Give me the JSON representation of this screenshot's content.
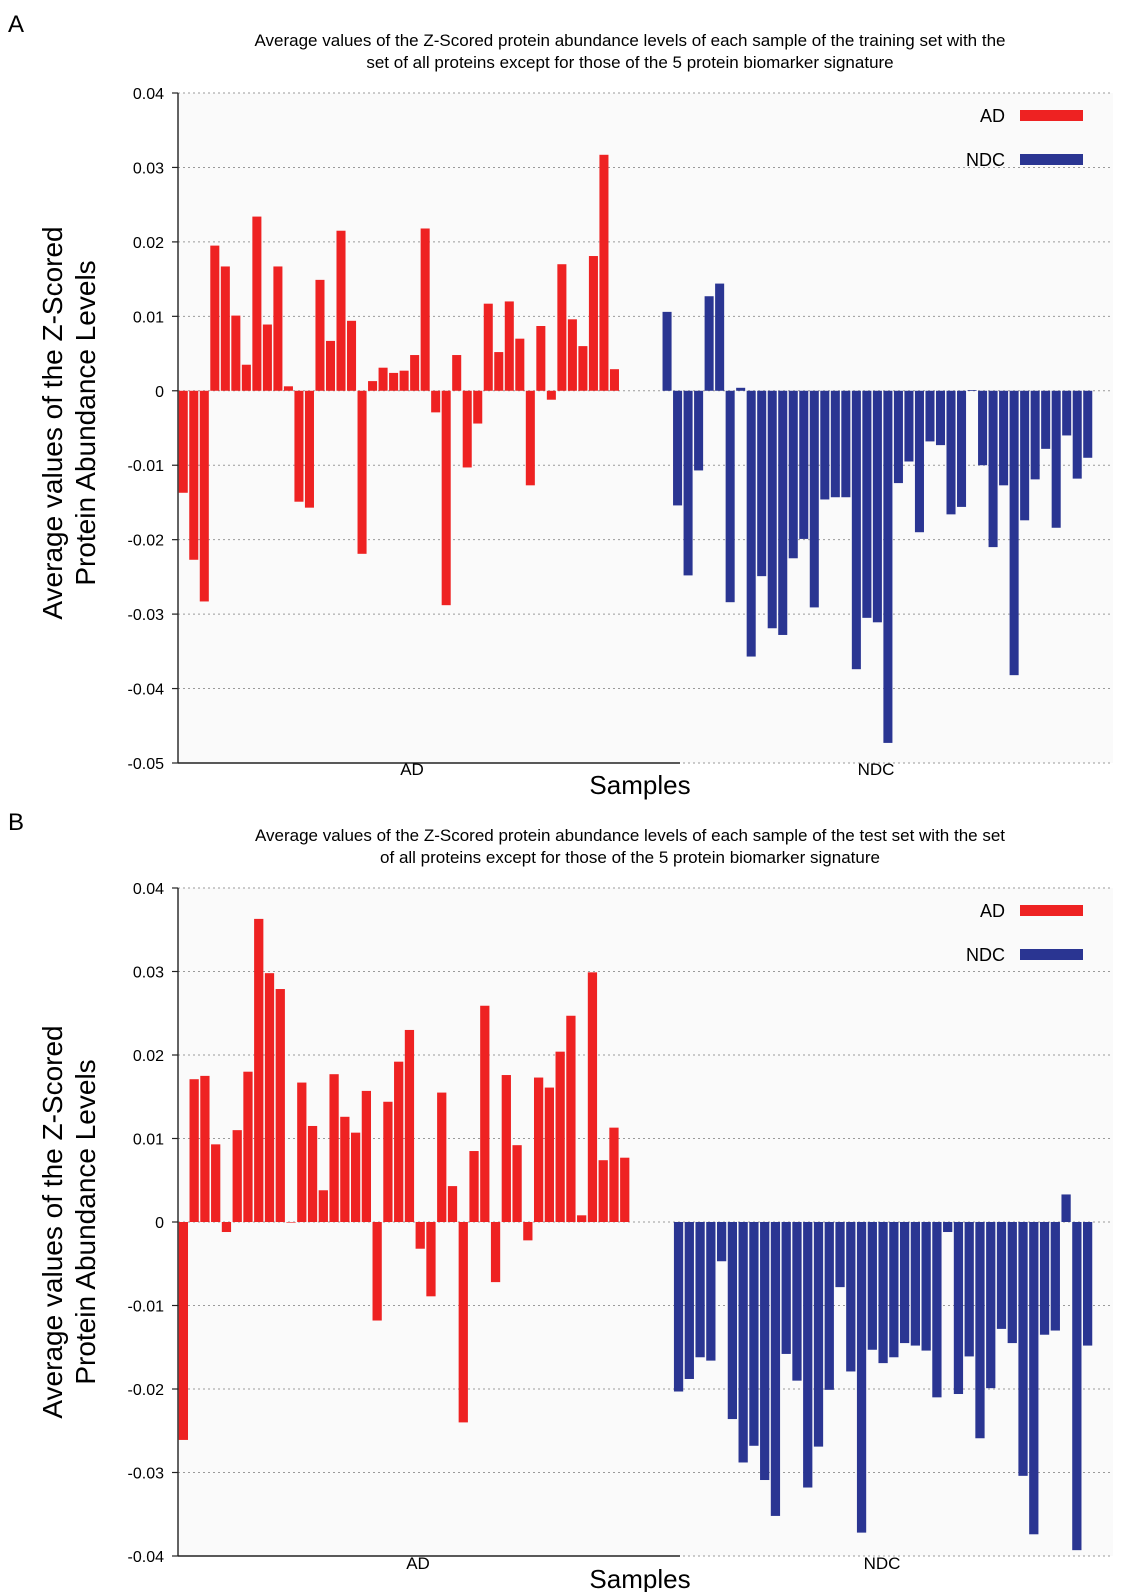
{
  "chart_data": [
    {
      "type": "bar",
      "panel": "A",
      "title_lines": [
        "Average values of the Z-Scored protein abundance levels of each sample of the training set with the",
        "set of all proteins except for those of the 5 protein biomarker signature"
      ],
      "xlabel": "Samples",
      "ylabel_lines": [
        "Average values of the Z-Scored",
        "Protein Abundance Levels"
      ],
      "ylim": [
        -0.05,
        0.04
      ],
      "yticks": [
        0.04,
        0.03,
        0.02,
        0.01,
        0,
        -0.01,
        -0.02,
        -0.03,
        -0.04,
        -0.05
      ],
      "ytick_labels": [
        "0.04",
        "0.03",
        "0.02",
        "0.01",
        "0",
        "-0.01",
        "-0.02",
        "-0.03",
        "-0.04",
        "-0.05"
      ],
      "grid": true,
      "legend": "top-right",
      "series": [
        {
          "name": "AD",
          "color": "#ee2222",
          "values": [
            -0.0137,
            -0.0227,
            -0.0283,
            0.0195,
            0.0167,
            0.0101,
            0.0035,
            0.0234,
            0.0089,
            0.0167,
            0.0006,
            -0.0149,
            -0.0157,
            0.0149,
            0.0067,
            0.0215,
            0.0094,
            -0.0219,
            0.0013,
            0.0031,
            0.0024,
            0.0027,
            0.0048,
            0.0218,
            -0.0029,
            -0.0288,
            0.0048,
            -0.0103,
            -0.0044,
            0.0117,
            0.0052,
            0.012,
            0.007,
            -0.0127,
            0.0087,
            -0.0012,
            0.017,
            0.0096,
            0.006,
            0.0181,
            0.0317,
            0.0029
          ]
        },
        {
          "name": "NDC",
          "color": "#2a3592",
          "values": [
            0.0106,
            -0.0154,
            -0.0248,
            -0.0107,
            0.0127,
            0.0144,
            -0.0284,
            0.0004,
            -0.0357,
            -0.0249,
            -0.0319,
            -0.0328,
            -0.0225,
            -0.0199,
            -0.0291,
            -0.0146,
            -0.0143,
            -0.0143,
            -0.0374,
            -0.0305,
            -0.0311,
            -0.0473,
            -0.0124,
            -0.0095,
            -0.019,
            -0.0068,
            -0.0073,
            -0.0166,
            -0.0156,
            0.0001,
            -0.01,
            -0.021,
            -0.0127,
            -0.0382,
            -0.0174,
            -0.0119,
            -0.0078,
            -0.0184,
            -0.006,
            -0.0118,
            -0.009
          ]
        }
      ],
      "group_labels": [
        "AD",
        "NDC"
      ]
    },
    {
      "type": "bar",
      "panel": "B",
      "title_lines": [
        "Average values of the Z-Scored protein abundance levels of each sample of the test set with the set",
        "of all proteins except for those of the 5 protein biomarker signature"
      ],
      "xlabel": "Samples",
      "ylabel_lines": [
        "Average values of the Z-Scored",
        "Protein Abundance Levels"
      ],
      "ylim": [
        -0.04,
        0.04
      ],
      "yticks": [
        0.04,
        0.03,
        0.02,
        0.01,
        0,
        -0.01,
        -0.02,
        -0.03,
        -0.04
      ],
      "ytick_labels": [
        "0.04",
        "0.03",
        "0.02",
        "0.01",
        "0",
        "-0.01",
        "-0.02",
        "-0.03",
        "-0.04"
      ],
      "grid": true,
      "legend": "top-right",
      "series": [
        {
          "name": "AD",
          "color": "#ee2222",
          "values": [
            -0.0261,
            0.0171,
            0.0175,
            0.0093,
            -0.0012,
            0.011,
            0.018,
            0.0363,
            0.0298,
            0.0279,
            0.0,
            0.0167,
            0.0115,
            0.0038,
            0.0177,
            0.0126,
            0.0107,
            0.0157,
            -0.0118,
            0.0144,
            0.0192,
            0.023,
            -0.0032,
            -0.0089,
            0.0155,
            0.0043,
            -0.024,
            0.0085,
            0.0259,
            -0.0072,
            0.0176,
            0.0092,
            -0.0022,
            0.0173,
            0.0161,
            0.0204,
            0.0247,
            0.0008,
            0.0299,
            0.0074,
            0.0113,
            0.0077
          ]
        },
        {
          "name": "NDC",
          "color": "#2a3592",
          "values": [
            -0.0203,
            -0.0188,
            -0.0162,
            -0.0166,
            -0.0047,
            -0.0236,
            -0.0288,
            -0.0268,
            -0.0309,
            -0.0352,
            -0.0158,
            -0.019,
            -0.0318,
            -0.0269,
            -0.0201,
            -0.0078,
            -0.0179,
            -0.0372,
            -0.0153,
            -0.0169,
            -0.0162,
            -0.0145,
            -0.0148,
            -0.0154,
            -0.021,
            -0.0012,
            -0.0206,
            -0.0161,
            -0.0259,
            -0.0199,
            -0.0128,
            -0.0145,
            -0.0304,
            -0.0374,
            -0.0135,
            -0.013,
            0.0033,
            -0.0393,
            -0.0148
          ]
        }
      ],
      "group_labels": [
        "AD",
        "NDC"
      ]
    }
  ]
}
